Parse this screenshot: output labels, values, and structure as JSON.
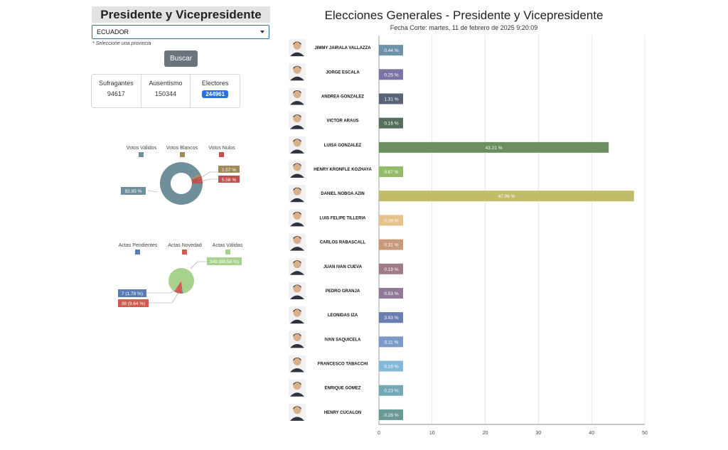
{
  "left_panel": {
    "title": "Presidente y Vicepresidente",
    "province_select": {
      "selected": "ECUADOR"
    },
    "select_hint": "* Seleccione una provincia",
    "search_button": "Buscar",
    "stats": [
      {
        "label": "Sufragantes",
        "value": "94617"
      },
      {
        "label": "Ausentismo",
        "value": "150344"
      },
      {
        "label": "Electores",
        "value": "244961"
      }
    ],
    "votes_donut": {
      "legend": [
        "Votos Válidos",
        "Votos Blancos",
        "Votos Nulos"
      ],
      "colors": [
        "#6f8f9b",
        "#a08a55",
        "#c0504d"
      ],
      "values": [
        92.85,
        1.57,
        5.58
      ],
      "labels": [
        "92.85 %",
        "1.57 %",
        "5.58 %"
      ]
    },
    "actas_pie": {
      "legend": [
        "Actas Pendientes",
        "Actas Novedad",
        "Actas Válidas"
      ],
      "colors": [
        "#5b7bb5",
        "#d35a4e",
        "#a9d18e"
      ],
      "values": [
        1.78,
        9.64,
        88.58
      ],
      "labels": [
        "7 (1.78 %)",
        "38 (9.64 %)",
        "349 (88.58 %)"
      ]
    }
  },
  "chart": {
    "title": "Elecciones Generales - Presidente y Vicepresidente",
    "subtitle": "Fecha Corte: martes, 11 de febrero de 2025 9:20:09"
  },
  "chart_data": {
    "type": "bar",
    "orientation": "horizontal",
    "title": "Elecciones Generales - Presidente y Vicepresidente",
    "subtitle": "Fecha Corte: martes, 11 de febrero de 2025 9:20:09",
    "xlim": [
      0,
      50
    ],
    "xticks": [
      0,
      10,
      20,
      30,
      40,
      50
    ],
    "grid": true,
    "categories": [
      "JIMMY JAIRALA VALLAZZA",
      "JORGE ESCALA",
      "ANDREA GONZALEZ",
      "VICTOR ARAUS",
      "LUISA GONZALEZ",
      "HENRY KRONFLE KOZHAYA",
      "DANIEL NOBOA AZIN",
      "LUIS FELIPE TILLERIA",
      "CARLOS RABASCALL",
      "JUAN IVAN CUEVA",
      "PEDRO GRANJA",
      "LEONIDAS IZA",
      "IVAN SAQUICELA",
      "FRANCESCO TABACCHI",
      "ENRIQUE GOMEZ",
      "HENRY CUCALON"
    ],
    "values": [
      0.44,
      0.25,
      1.31,
      0.16,
      43.21,
      0.67,
      47.96,
      0.28,
      0.31,
      0.19,
      0.53,
      3.93,
      0.11,
      0.16,
      0.23,
      0.28
    ],
    "labels": [
      "0.44 %",
      "0.25 %",
      "1.31 %",
      "0.16 %",
      "43.21 %",
      "0.67 %",
      "47.96 %",
      "0.28 %",
      "0.31 %",
      "0.19 %",
      "0.53 %",
      "3.93 %",
      "0.11 %",
      "0.16 %",
      "0.23 %",
      "0.28 %"
    ],
    "colors": [
      "#6e93a8",
      "#7d74a6",
      "#5a6478",
      "#55705e",
      "#6b8f5e",
      "#93bb6a",
      "#c2bb6a",
      "#e6c28a",
      "#c79a7a",
      "#a07a86",
      "#8f7a9a",
      "#6a7fb0",
      "#7b9ac8",
      "#86b8d8",
      "#73a8b4",
      "#6a9a94"
    ]
  }
}
